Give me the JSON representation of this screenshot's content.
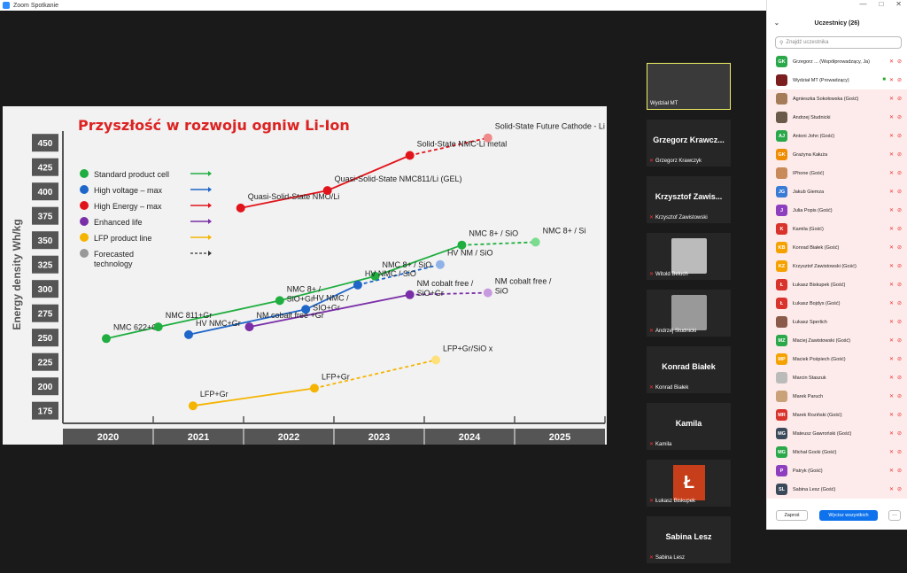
{
  "window": {
    "title": "Zoom Spotkanie"
  },
  "slide": {
    "title": "Przyszłość w rozwoju ogniw Li-Ion",
    "ylabel": "Energy density Wh/kg",
    "years": [
      "2020",
      "2021",
      "2022",
      "2023",
      "2024",
      "2025"
    ],
    "yticks": [
      "450",
      "425",
      "400",
      "375",
      "350",
      "325",
      "300",
      "275",
      "250",
      "225",
      "200",
      "175"
    ],
    "legend": [
      {
        "label": "Standard product cell",
        "color": "#1fae3f"
      },
      {
        "label": "High voltage – max",
        "color": "#1e66c8"
      },
      {
        "label": "High Energy – max",
        "color": "#e2141b"
      },
      {
        "label": "Enhanced life",
        "color": "#7a2ea8"
      },
      {
        "label": "LFP product line",
        "color": "#f5b400"
      },
      {
        "label": "Forecasted technology",
        "color": "#999999"
      }
    ]
  },
  "chart_data": {
    "type": "scatter",
    "title": "Przyszłość w rozwoju ogniw Li-Ion",
    "ylabel": "Energy density Wh/kg",
    "x_categories": [
      "2020",
      "2021",
      "2022",
      "2023",
      "2024",
      "2025"
    ],
    "ylim": [
      162,
      462
    ],
    "series": [
      {
        "name": "Standard product cell",
        "color": "#1fae3f",
        "points": [
          {
            "x": 2020.0,
            "y": 249,
            "label": "NMC 622+Gr"
          },
          {
            "x": 2020.6,
            "y": 261,
            "label": "NMC 811+Gr"
          },
          {
            "x": 2022.0,
            "y": 288,
            "label": "NMC 8+ / SiO+Gr"
          },
          {
            "x": 2023.1,
            "y": 313,
            "label": "NMC 8+ / SiO"
          },
          {
            "x": 2024.1,
            "y": 345,
            "label": "NMC 8+ / SiO"
          },
          {
            "x": 2024.95,
            "y": 348,
            "label": "NMC 8+ / Si",
            "forecast": true
          }
        ]
      },
      {
        "name": "High voltage – max",
        "color": "#1e66c8",
        "points": [
          {
            "x": 2020.95,
            "y": 253,
            "label": "HV NMC+Gr"
          },
          {
            "x": 2022.3,
            "y": 279,
            "label": "HV NMC / SIO+Gr"
          },
          {
            "x": 2022.9,
            "y": 304,
            "label": "HV NMC / SiO"
          },
          {
            "x": 2023.85,
            "y": 325,
            "label": "HV NM / SiO",
            "forecast": true
          }
        ]
      },
      {
        "name": "High Energy – max",
        "color": "#e2141b",
        "points": [
          {
            "x": 2021.55,
            "y": 383,
            "label": "Quasi-Solid-State NMO/Li"
          },
          {
            "x": 2022.55,
            "y": 401,
            "label": "Quasi-Solid-State NMC811/Li (GEL)"
          },
          {
            "x": 2023.5,
            "y": 437,
            "label": "Solid-State NMC-Li metal"
          },
          {
            "x": 2024.4,
            "y": 455,
            "label": "Solid-State Future Cathode - Li metal",
            "forecast": true
          }
        ]
      },
      {
        "name": "Enhanced life",
        "color": "#7a2ea8",
        "points": [
          {
            "x": 2021.65,
            "y": 261,
            "label": "NM cobalt free +Gr"
          },
          {
            "x": 2023.5,
            "y": 294,
            "label": "NM cobalt free / SiO+Gr"
          },
          {
            "x": 2024.4,
            "y": 296,
            "label": "NM cobalt free / SiO",
            "forecast": true
          }
        ]
      },
      {
        "name": "LFP product line",
        "color": "#f5b400",
        "points": [
          {
            "x": 2021.0,
            "y": 180,
            "label": "LFP+Gr"
          },
          {
            "x": 2022.4,
            "y": 198,
            "label": "LFP+Gr"
          },
          {
            "x": 2023.8,
            "y": 227,
            "label": "LFP+Gr/SiO x",
            "forecast": true
          }
        ]
      }
    ]
  },
  "tiles": [
    {
      "type": "video",
      "name": "Wydział MT"
    },
    {
      "type": "name",
      "big": "Grzegorz Krawcz...",
      "small": "Grzegorz Krawczyk"
    },
    {
      "type": "name",
      "big": "Krzysztof Zawis...",
      "small": "Krzysztof Zawistowski"
    },
    {
      "type": "photo",
      "small": "Witold Beluch"
    },
    {
      "type": "photo",
      "small": "Andrzej Studnicki"
    },
    {
      "type": "name",
      "big": "Konrad Białek",
      "small": "Konrad Białek"
    },
    {
      "type": "name",
      "big": "Kamila",
      "small": "Kamila"
    },
    {
      "type": "logo",
      "logo": "Ł",
      "small": "Łukasz Biskupek"
    },
    {
      "type": "name",
      "big": "Sabina Lesz",
      "small": "Sabina Lesz"
    }
  ],
  "panel": {
    "title": "Uczestnicy (26)",
    "search_placeholder": "Znajdź uczestnika",
    "invite_label": "Zaproś",
    "mute_all_label": "Wycisz wszystkich",
    "more_label": "···"
  },
  "participants": [
    {
      "initials": "GK",
      "color": "#2aa84a",
      "name": "Grzegorz ... (Współprowadzący, Ja)",
      "hl": false
    },
    {
      "initials": "",
      "color": "#7a1e1e",
      "name": "Wydział MT (Prowadzący)",
      "hl": false,
      "video": true
    },
    {
      "initials": "",
      "color": "#a57c5a",
      "name": "Agnieszka Sokołowska (Gość)",
      "hl": true
    },
    {
      "initials": "",
      "color": "#6a5a4a",
      "name": "Andrzej Studnicki",
      "hl": true
    },
    {
      "initials": "AJ",
      "color": "#2aa84a",
      "name": "Antoni John (Gość)",
      "hl": true
    },
    {
      "initials": "GK",
      "color": "#f08c00",
      "name": "Grażyna Kałuża",
      "hl": true
    },
    {
      "initials": "",
      "color": "#c98a5a",
      "name": "IPhone (Gość)",
      "hl": true
    },
    {
      "initials": "JG",
      "color": "#3a7bd5",
      "name": "Jakub Giemza",
      "hl": true
    },
    {
      "initials": "J",
      "color": "#8e3fbf",
      "name": "Julia Popis (Gość)",
      "hl": true
    },
    {
      "initials": "K",
      "color": "#d9342b",
      "name": "Kamila (Gość)",
      "hl": true
    },
    {
      "initials": "KB",
      "color": "#f5a100",
      "name": "Konrad Białek (Gość)",
      "hl": true
    },
    {
      "initials": "KZ",
      "color": "#f5a100",
      "name": "Krzysztof Zawistowski (Gość)",
      "hl": true
    },
    {
      "initials": "Ł",
      "color": "#d9342b",
      "name": "Łukasz Biskupek (Gość)",
      "hl": true
    },
    {
      "initials": "Ł",
      "color": "#d9342b",
      "name": "Łukasz Bojdys (Gość)",
      "hl": true
    },
    {
      "initials": "",
      "color": "#8a5a4a",
      "name": "Łukasz Sperlich",
      "hl": true
    },
    {
      "initials": "MZ",
      "color": "#2aa84a",
      "name": "Maciej Zawistowski (Gość)",
      "hl": true
    },
    {
      "initials": "MP",
      "color": "#f5a100",
      "name": "Maciek Pośpiech (Gość)",
      "hl": true
    },
    {
      "initials": "",
      "color": "#bbbbbb",
      "name": "Marcin Staszuk",
      "hl": true
    },
    {
      "initials": "",
      "color": "#c9a27a",
      "name": "Marek Paruch",
      "hl": true
    },
    {
      "initials": "MR",
      "color": "#d9342b",
      "name": "Marek Roziński (Gość)",
      "hl": true
    },
    {
      "initials": "MG",
      "color": "#3b4a5a",
      "name": "Mateusz Gawroński (Gość)",
      "hl": true
    },
    {
      "initials": "MG",
      "color": "#2aa84a",
      "name": "Michał Gocki (Gość)",
      "hl": true
    },
    {
      "initials": "P",
      "color": "#8e3fbf",
      "name": "Patryk (Gość)",
      "hl": true
    },
    {
      "initials": "SL",
      "color": "#3b4a5a",
      "name": "Sabina Lesz (Gość)",
      "hl": true
    }
  ]
}
